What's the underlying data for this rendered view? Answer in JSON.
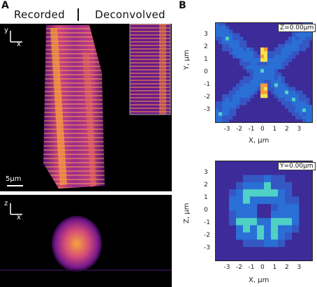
{
  "panel_a": {
    "letter": "A",
    "header_left": "Recorded",
    "header_right": "Deconvolved",
    "top_axes": {
      "vertical": "y",
      "horizontal": "x"
    },
    "scalebar": "5μm",
    "bottom_axes": {
      "vertical": "z",
      "horizontal": "x"
    }
  },
  "panel_b": {
    "letter": "B",
    "colors": {
      "background": "#3d2b9a",
      "low": "#2a6fd6",
      "mid": "#4fd1c5",
      "high": "#f2e14b",
      "peak": "#ff9a3c"
    }
  },
  "chart_data": [
    {
      "type": "heatmap",
      "inset": "Z=0.00μm",
      "xlabel": "X, μm",
      "ylabel": "Y, μm",
      "xlim": [
        -4,
        4
      ],
      "ylim": [
        -4,
        4
      ],
      "xticks": [
        "-3",
        "-2",
        "-1",
        "0",
        "1",
        "2",
        "3"
      ],
      "yticks": [
        "3",
        "2",
        "1",
        "0",
        "-1",
        "-2",
        "-3"
      ]
    },
    {
      "type": "heatmap",
      "inset": "Y=0.00μm",
      "xlabel": "X, μm",
      "ylabel": "Z, μm",
      "xlim": [
        -4,
        4
      ],
      "ylim": [
        -4,
        4
      ],
      "xticks": [
        "-3",
        "-2",
        "-1",
        "0",
        "1",
        "2",
        "3"
      ],
      "yticks": [
        "3",
        "2",
        "1",
        "0",
        "-1",
        "-2",
        "-3"
      ]
    }
  ]
}
